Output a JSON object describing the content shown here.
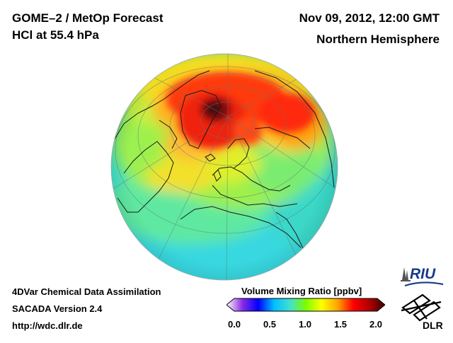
{
  "header": {
    "title_line1": "GOME–2 / MetOp Forecast",
    "title_line2": "HCl at 55.4 hPa",
    "date": "Nov 09, 2012, 12:00 GMT",
    "region": "Northern Hemisphere"
  },
  "footer": {
    "line1": "4DVar Chemical Data Assimilation",
    "line2": "SACADA Version 2.4",
    "line3": "http://wdc.dlr.de"
  },
  "colorbar": {
    "label": "Volume Mixing Ratio [ppbv]",
    "min": 0.0,
    "max": 2.0,
    "ticks": [
      "0.0",
      "0.5",
      "1.0",
      "1.5",
      "2.0"
    ],
    "colors": [
      "#ffffff",
      "#8a2be2",
      "#0000ff",
      "#00bfff",
      "#40e0d0",
      "#7cfc00",
      "#ffff00",
      "#ffa500",
      "#ff0000",
      "#b00000",
      "#3a0000"
    ]
  },
  "logos": {
    "riu": "RIU",
    "dlr": "DLR"
  }
}
